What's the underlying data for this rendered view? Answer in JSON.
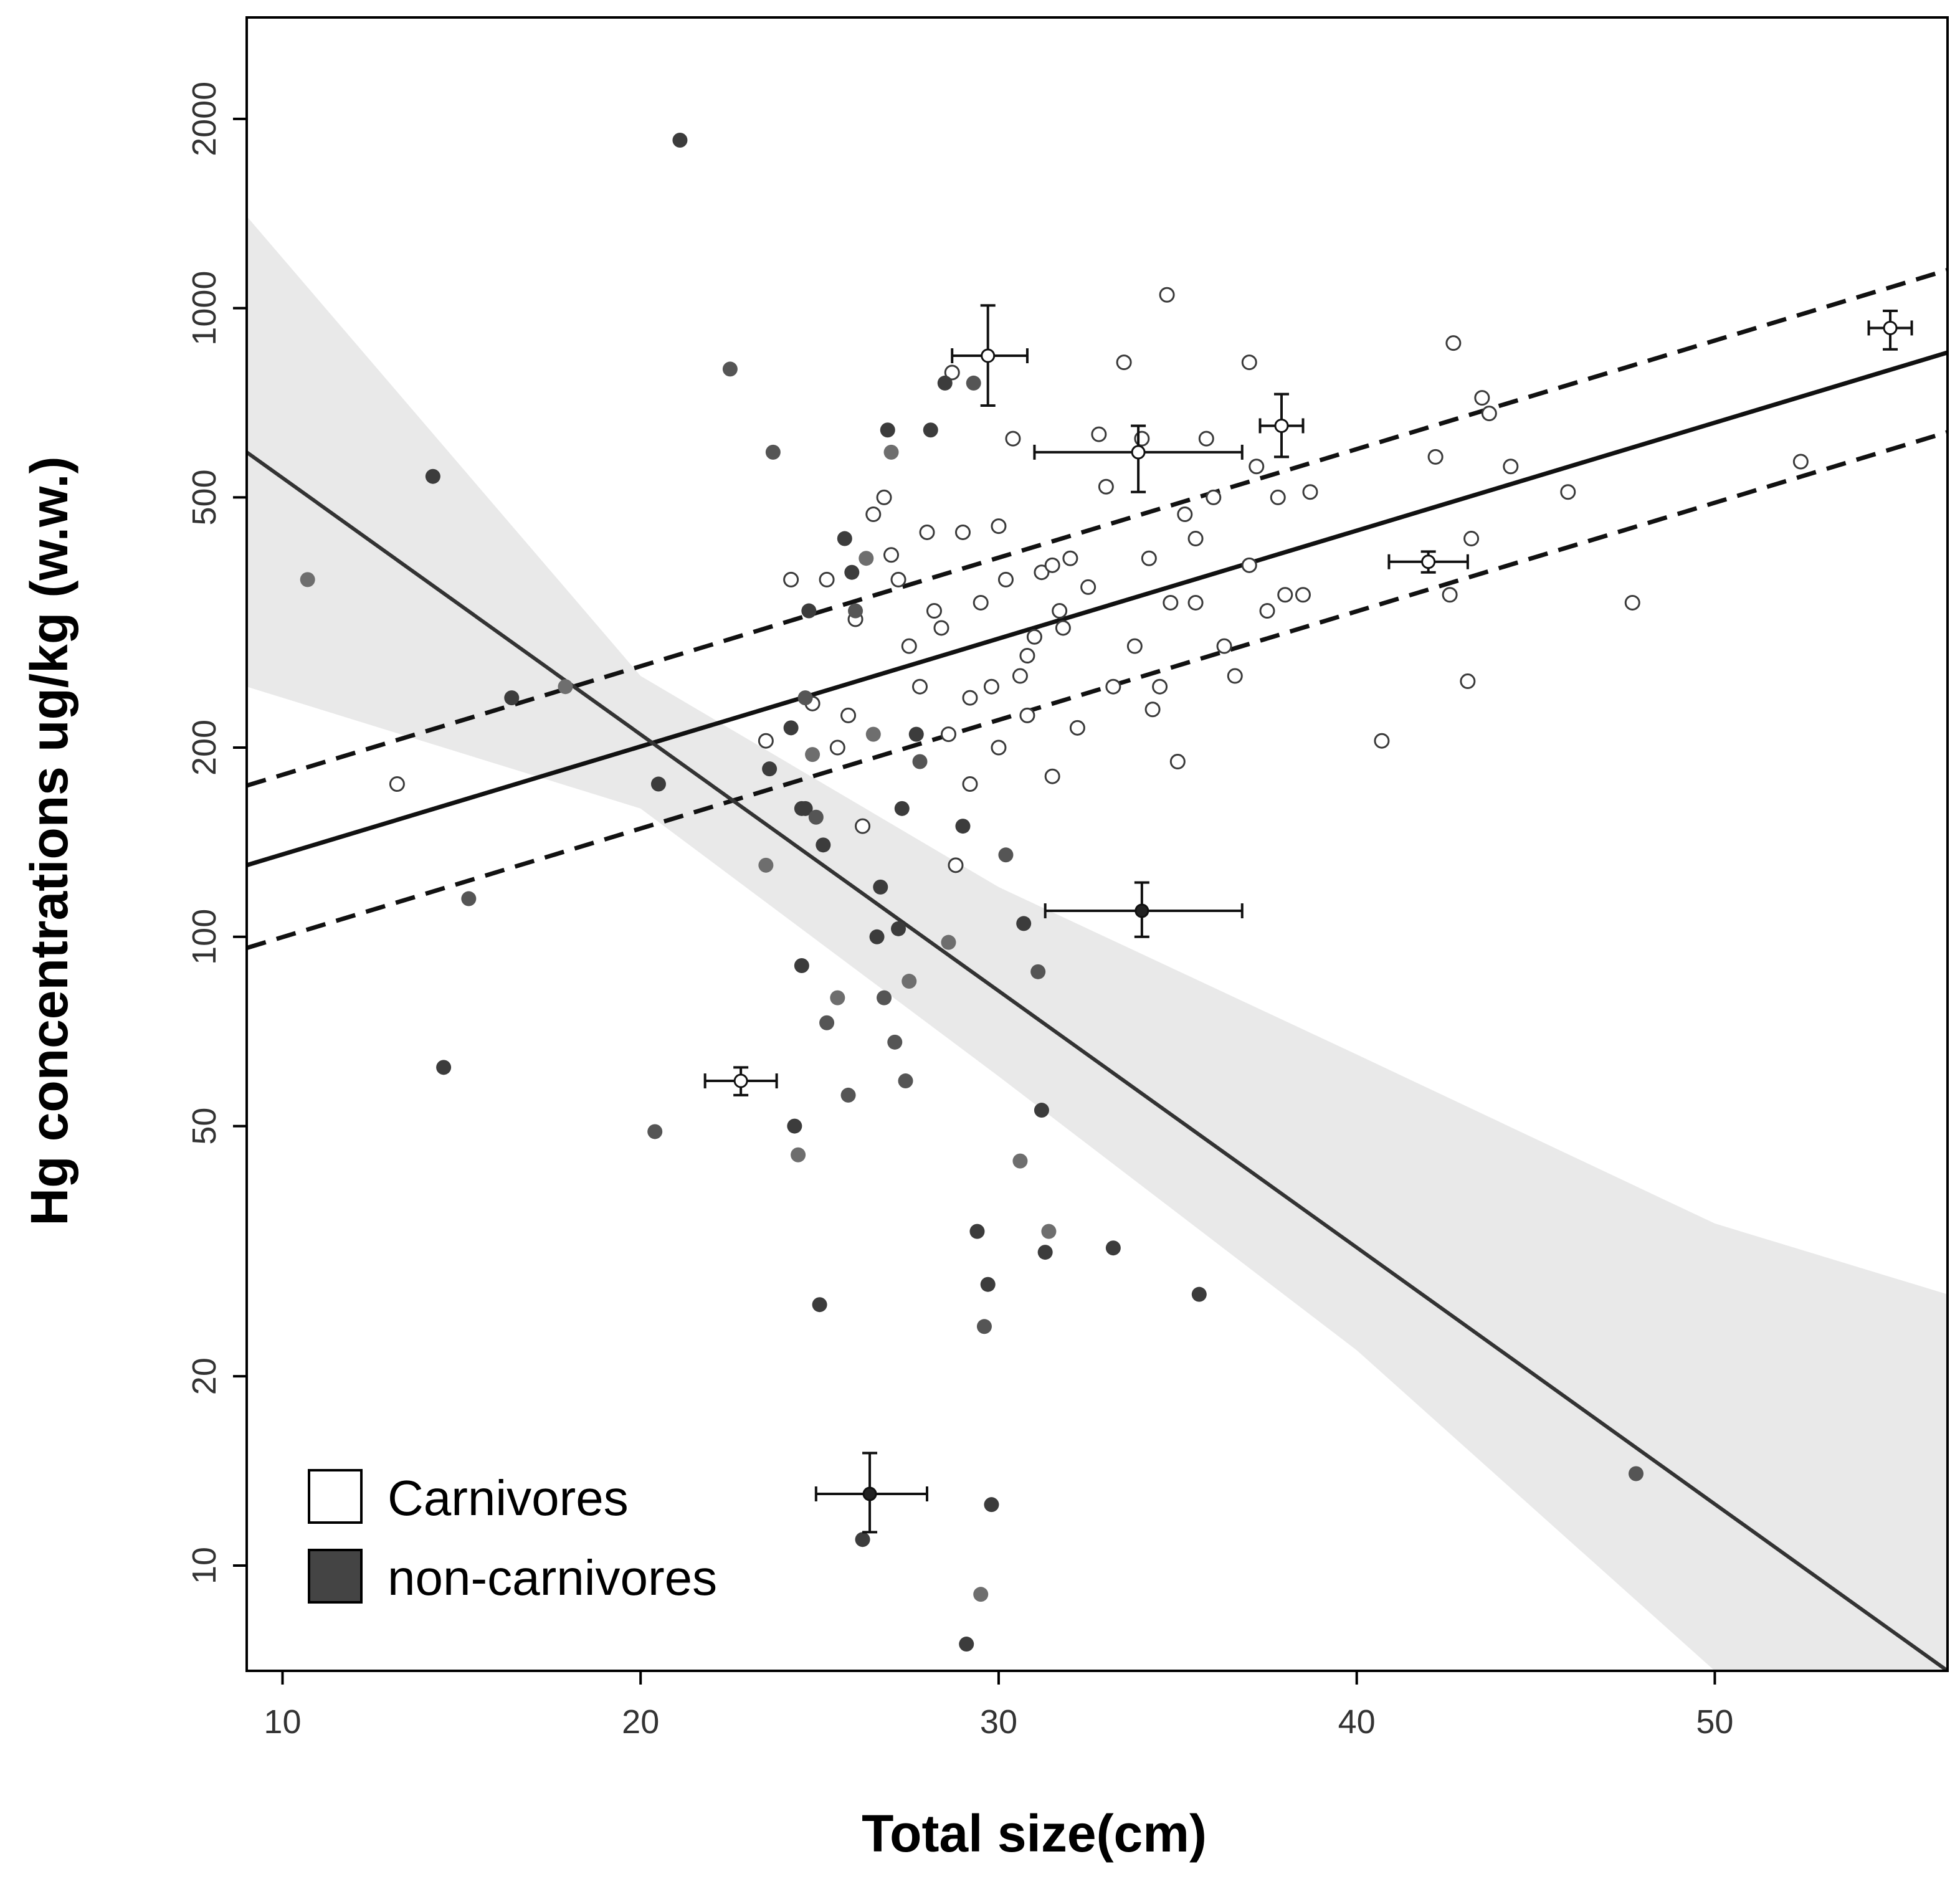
{
  "chart_data": {
    "type": "scatter",
    "xlabel": "Total size(cm)",
    "ylabel": "Hg concentrations ug/kg (w.w.)",
    "x_ticks": [
      10,
      20,
      30,
      40,
      50
    ],
    "y_ticks": [
      10,
      20,
      50,
      100,
      200,
      500,
      1000,
      2000
    ],
    "xlim": [
      9,
      56.5
    ],
    "ylim": [
      6.8,
      2900
    ],
    "y_scale": "log",
    "legend": {
      "position": "bottom-left",
      "entries": [
        {
          "label": "Carnivores",
          "fill": "#ffffff"
        },
        {
          "label": "non-carnivores",
          "fill": "#444444"
        }
      ]
    },
    "series": [
      {
        "name": "Carnivores",
        "marker": "open-circle",
        "points": [
          [
            13.2,
            175
          ],
          [
            23.5,
            205
          ],
          [
            24.2,
            370
          ],
          [
            24.8,
            235
          ],
          [
            25.2,
            370
          ],
          [
            25.5,
            200
          ],
          [
            25.8,
            225
          ],
          [
            26.0,
            320
          ],
          [
            26.2,
            150
          ],
          [
            26.5,
            470
          ],
          [
            26.8,
            500
          ],
          [
            27.0,
            405
          ],
          [
            27.2,
            370
          ],
          [
            27.5,
            290
          ],
          [
            27.8,
            250
          ],
          [
            28.0,
            440
          ],
          [
            28.2,
            330
          ],
          [
            28.4,
            310
          ],
          [
            28.6,
            210
          ],
          [
            28.8,
            130
          ],
          [
            29.0,
            440
          ],
          [
            29.2,
            175
          ],
          [
            29.5,
            340
          ],
          [
            29.8,
            250
          ],
          [
            30.0,
            450
          ],
          [
            30.2,
            370
          ],
          [
            30.4,
            620
          ],
          [
            30.6,
            260
          ],
          [
            30.8,
            280
          ],
          [
            31.0,
            300
          ],
          [
            31.2,
            380
          ],
          [
            31.5,
            180
          ],
          [
            31.8,
            310
          ],
          [
            32.0,
            400
          ],
          [
            32.5,
            360
          ],
          [
            32.8,
            630
          ],
          [
            33.0,
            520
          ],
          [
            33.2,
            250
          ],
          [
            33.5,
            820
          ],
          [
            33.8,
            290
          ],
          [
            34.0,
            620
          ],
          [
            34.2,
            400
          ],
          [
            34.5,
            250
          ],
          [
            34.8,
            340
          ],
          [
            35.0,
            190
          ],
          [
            35.2,
            470
          ],
          [
            35.5,
            340
          ],
          [
            35.8,
            620
          ],
          [
            36.0,
            500
          ],
          [
            36.3,
            290
          ],
          [
            36.6,
            260
          ],
          [
            37.0,
            820
          ],
          [
            37.2,
            560
          ],
          [
            37.5,
            330
          ],
          [
            37.8,
            500
          ],
          [
            38.0,
            350
          ],
          [
            38.5,
            350
          ],
          [
            38.7,
            510
          ],
          [
            40.7,
            205
          ],
          [
            42.2,
            580
          ],
          [
            42.6,
            350
          ],
          [
            42.7,
            880
          ],
          [
            43.1,
            255
          ],
          [
            43.2,
            430
          ],
          [
            43.5,
            720
          ],
          [
            43.7,
            680
          ],
          [
            44.3,
            560
          ],
          [
            45.9,
            510
          ],
          [
            47.7,
            340
          ],
          [
            52.4,
            570
          ],
          [
            29.2,
            240
          ],
          [
            31.5,
            390
          ],
          [
            35.5,
            430
          ],
          [
            37.0,
            390
          ],
          [
            34.7,
            1050
          ],
          [
            30.8,
            225
          ],
          [
            32.2,
            215
          ],
          [
            28.7,
            790
          ],
          [
            34.3,
            230
          ],
          [
            31.7,
            330
          ],
          [
            30.0,
            200
          ]
        ]
      },
      {
        "name": "non-carnivores",
        "marker": "filled-circle",
        "points": [
          [
            10.7,
            370
          ],
          [
            14.2,
            540
          ],
          [
            14.5,
            62
          ],
          [
            15.2,
            115
          ],
          [
            16.4,
            240
          ],
          [
            17.9,
            250
          ],
          [
            20.4,
            49
          ],
          [
            20.5,
            175
          ],
          [
            21.1,
            1850
          ],
          [
            22.5,
            800
          ],
          [
            23.5,
            130
          ],
          [
            23.6,
            185
          ],
          [
            23.7,
            590
          ],
          [
            24.2,
            215
          ],
          [
            24.3,
            50
          ],
          [
            24.4,
            45
          ],
          [
            24.5,
            90
          ],
          [
            24.6,
            160
          ],
          [
            24.6,
            240
          ],
          [
            24.7,
            330
          ],
          [
            24.8,
            195
          ],
          [
            24.9,
            155
          ],
          [
            25.0,
            26
          ],
          [
            25.1,
            140
          ],
          [
            25.2,
            73
          ],
          [
            25.5,
            80
          ],
          [
            25.7,
            430
          ],
          [
            25.8,
            56
          ],
          [
            25.9,
            380
          ],
          [
            26.2,
            11
          ],
          [
            26.5,
            210
          ],
          [
            26.6,
            100
          ],
          [
            26.7,
            120
          ],
          [
            26.8,
            80
          ],
          [
            26.9,
            640
          ],
          [
            27.0,
            590
          ],
          [
            27.1,
            68
          ],
          [
            27.2,
            103
          ],
          [
            27.3,
            160
          ],
          [
            27.4,
            59
          ],
          [
            27.5,
            85
          ],
          [
            27.7,
            210
          ],
          [
            27.8,
            190
          ],
          [
            28.1,
            640
          ],
          [
            28.5,
            760
          ],
          [
            28.6,
            98
          ],
          [
            29.0,
            150
          ],
          [
            29.1,
            7.5
          ],
          [
            29.3,
            760
          ],
          [
            29.4,
            34
          ],
          [
            29.5,
            9.0
          ],
          [
            29.6,
            24
          ],
          [
            29.7,
            28
          ],
          [
            29.8,
            12.5
          ],
          [
            30.2,
            135
          ],
          [
            30.6,
            44
          ],
          [
            30.7,
            105
          ],
          [
            31.1,
            88
          ],
          [
            31.2,
            53
          ],
          [
            31.3,
            31.5
          ],
          [
            31.4,
            34
          ],
          [
            33.2,
            32
          ],
          [
            35.6,
            27
          ],
          [
            47.8,
            14
          ],
          [
            24.5,
            160
          ],
          [
            26.3,
            400
          ],
          [
            26.0,
            330
          ]
        ]
      },
      {
        "name": "Means with error bars",
        "marker": "error-bar-cross",
        "points": [
          {
            "x": 29.7,
            "y": 840,
            "xmin": 28.7,
            "xmax": 30.8,
            "ymin": 700,
            "ymax": 1010
          },
          {
            "x": 33.9,
            "y": 590,
            "xmin": 31.0,
            "xmax": 36.8,
            "ymin": 510,
            "ymax": 650
          },
          {
            "x": 37.9,
            "y": 650,
            "xmin": 37.3,
            "xmax": 38.5,
            "ymin": 580,
            "ymax": 730
          },
          {
            "x": 42.0,
            "y": 395,
            "xmin": 40.9,
            "xmax": 43.1,
            "ymin": 380,
            "ymax": 410
          },
          {
            "x": 54.9,
            "y": 930,
            "xmin": 54.3,
            "xmax": 55.5,
            "ymin": 860,
            "ymax": 990
          },
          {
            "x": 22.8,
            "y": 59,
            "xmin": 21.8,
            "xmax": 23.8,
            "ymin": 56,
            "ymax": 62
          },
          {
            "x": 34.0,
            "y": 110,
            "xmin": 31.3,
            "xmax": 36.8,
            "ymin": 100,
            "ymax": 122
          },
          {
            "x": 26.4,
            "y": 13,
            "xmin": 24.9,
            "xmax": 28.0,
            "ymin": 11.3,
            "ymax": 15.1
          }
        ]
      }
    ],
    "regression_lines": [
      {
        "name": "Carnivores fit",
        "style": "solid",
        "x": [
          9,
          56.5
        ],
        "y": [
          130,
          850
        ]
      },
      {
        "name": "Carnivores CI upper",
        "style": "dashed",
        "x": [
          9,
          56.5
        ],
        "y": [
          174,
          1150
        ]
      },
      {
        "name": "Carnivores CI lower",
        "style": "dashed",
        "x": [
          9,
          56.5
        ],
        "y": [
          96,
          635
        ]
      },
      {
        "name": "non-carnivores fit",
        "style": "solid",
        "x": [
          9,
          56.5
        ],
        "y": [
          590,
          6.8
        ]
      }
    ],
    "confidence_band": {
      "name": "non-carnivores CI",
      "x": [
        9,
        20,
        30,
        40,
        50,
        56.5
      ],
      "upper": [
        1400,
        260,
        120,
        65,
        35,
        27
      ],
      "lower": [
        250,
        160,
        60,
        22,
        6.8,
        6.8
      ]
    }
  }
}
